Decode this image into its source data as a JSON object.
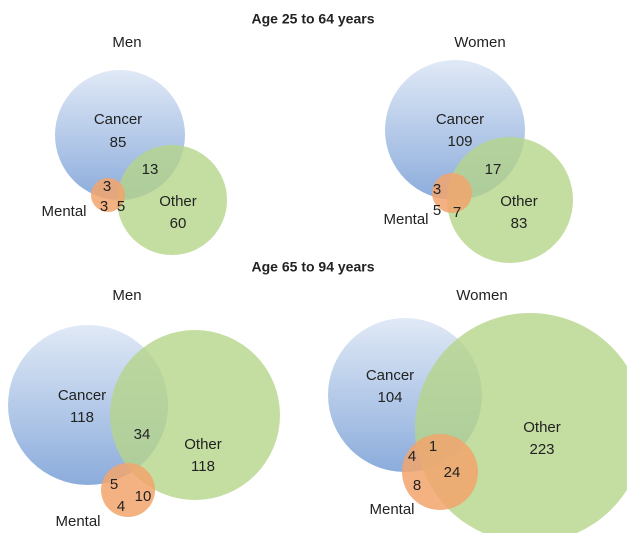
{
  "headings": [
    "Age 25 to 64 years",
    "Age 65 to 94 years"
  ],
  "chart_data": [
    {
      "type": "venn",
      "title": "Men",
      "circles": [
        {
          "name": "Cancer",
          "color": "#8faedc"
        },
        {
          "name": "Other",
          "color": "#b5d58a"
        },
        {
          "name": "Mental",
          "color": "#f2a56c"
        }
      ],
      "values": [
        85,
        60,
        13,
        3,
        3,
        5
      ]
    },
    {
      "type": "venn",
      "title": "Women",
      "circles": [
        {
          "name": "Cancer",
          "color": "#8faedc"
        },
        {
          "name": "Other",
          "color": "#b5d58a"
        },
        {
          "name": "Mental",
          "color": "#f2a56c"
        }
      ],
      "values": [
        109,
        83,
        17,
        3,
        5,
        7
      ]
    },
    {
      "type": "venn",
      "title": "Men",
      "circles": [
        {
          "name": "Cancer",
          "color": "#8faedc"
        },
        {
          "name": "Other",
          "color": "#b5d58a"
        },
        {
          "name": "Mental",
          "color": "#f2a56c"
        }
      ],
      "values": [
        118,
        118,
        34,
        5,
        4,
        10
      ]
    },
    {
      "type": "venn",
      "title": "Women",
      "circles": [
        {
          "name": "Cancer",
          "color": "#8faedc"
        },
        {
          "name": "Other",
          "color": "#b5d58a"
        },
        {
          "name": "Mental",
          "color": "#f2a56c"
        }
      ],
      "values": [
        104,
        223,
        1,
        4,
        24,
        8
      ]
    }
  ]
}
